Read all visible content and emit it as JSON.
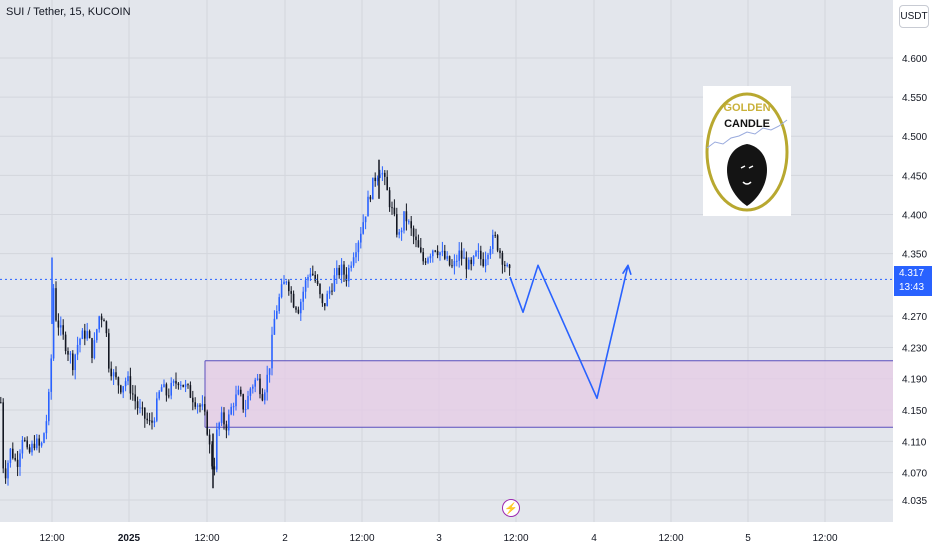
{
  "header": {
    "symbol_title": "SUI / Tether, 15, KUCOIN"
  },
  "price_axis": {
    "currency_label": "USDT",
    "last_price": "4.317",
    "countdown": "13:43"
  },
  "logo": {
    "line1": "GOLDEN",
    "line2": "CANDLE"
  },
  "colors": {
    "up_candle": "#2962ff",
    "down_candle": "#131722",
    "projection": "#2962ff",
    "zone_fill": "#e5cbe6",
    "zone_border": "#5b4fbd",
    "last_price_line": "#2962ff",
    "logo_ring": "#b8a830"
  },
  "chart_data": {
    "type": "candlestick",
    "symbol": "SUI / Tether",
    "interval": "15",
    "exchange": "KUCOIN",
    "ylim": [
      4.03,
      4.64
    ],
    "y_ticks": [
      4.035,
      4.07,
      4.11,
      4.15,
      4.19,
      4.23,
      4.27,
      4.317,
      4.35,
      4.4,
      4.45,
      4.5,
      4.55,
      4.6
    ],
    "y_tick_labels": [
      "4.035",
      "4.070",
      "4.110",
      "4.150",
      "4.190",
      "4.230",
      "4.270",
      "",
      "4.350",
      "4.400",
      "4.450",
      "4.500",
      "4.550",
      "4.600"
    ],
    "x_tick_labels": [
      "12:00",
      "2025",
      "12:00",
      "2",
      "12:00",
      "3",
      "12:00",
      "4",
      "12:00",
      "5",
      "12:00"
    ],
    "last_price": 4.317,
    "price_path": [
      [
        0,
        4.16
      ],
      [
        3,
        4.06
      ],
      [
        10,
        4.1
      ],
      [
        16,
        4.08
      ],
      [
        22,
        4.12
      ],
      [
        27,
        4.09
      ],
      [
        34,
        4.11
      ],
      [
        40,
        4.1
      ],
      [
        46,
        4.14
      ],
      [
        50,
        4.19
      ],
      [
        52,
        4.32
      ],
      [
        55,
        4.27
      ],
      [
        60,
        4.25
      ],
      [
        66,
        4.23
      ],
      [
        72,
        4.21
      ],
      [
        78,
        4.24
      ],
      [
        86,
        4.25
      ],
      [
        92,
        4.22
      ],
      [
        98,
        4.27
      ],
      [
        104,
        4.27
      ],
      [
        108,
        4.21
      ],
      [
        114,
        4.19
      ],
      [
        120,
        4.18
      ],
      [
        126,
        4.19
      ],
      [
        132,
        4.17
      ],
      [
        138,
        4.15
      ],
      [
        144,
        4.14
      ],
      [
        150,
        4.13
      ],
      [
        155,
        4.15
      ],
      [
        160,
        4.18
      ],
      [
        166,
        4.17
      ],
      [
        172,
        4.18
      ],
      [
        178,
        4.19
      ],
      [
        184,
        4.18
      ],
      [
        190,
        4.17
      ],
      [
        196,
        4.16
      ],
      [
        202,
        4.15
      ],
      [
        206,
        4.13
      ],
      [
        210,
        4.09
      ],
      [
        213,
        4.07
      ],
      [
        216,
        4.12
      ],
      [
        220,
        4.14
      ],
      [
        226,
        4.13
      ],
      [
        232,
        4.16
      ],
      [
        238,
        4.17
      ],
      [
        244,
        4.15
      ],
      [
        250,
        4.18
      ],
      [
        256,
        4.19
      ],
      [
        262,
        4.17
      ],
      [
        268,
        4.2
      ],
      [
        274,
        4.27
      ],
      [
        280,
        4.3
      ],
      [
        286,
        4.32
      ],
      [
        292,
        4.29
      ],
      [
        298,
        4.28
      ],
      [
        304,
        4.31
      ],
      [
        310,
        4.33
      ],
      [
        316,
        4.31
      ],
      [
        322,
        4.28
      ],
      [
        328,
        4.3
      ],
      [
        334,
        4.32
      ],
      [
        340,
        4.33
      ],
      [
        346,
        4.32
      ],
      [
        352,
        4.35
      ],
      [
        358,
        4.37
      ],
      [
        364,
        4.4
      ],
      [
        370,
        4.43
      ],
      [
        375,
        4.45
      ],
      [
        380,
        4.46
      ],
      [
        386,
        4.43
      ],
      [
        392,
        4.4
      ],
      [
        398,
        4.37
      ],
      [
        404,
        4.4
      ],
      [
        410,
        4.38
      ],
      [
        416,
        4.36
      ],
      [
        422,
        4.34
      ],
      [
        428,
        4.35
      ],
      [
        434,
        4.36
      ],
      [
        440,
        4.35
      ],
      [
        446,
        4.34
      ],
      [
        452,
        4.33
      ],
      [
        458,
        4.35
      ],
      [
        464,
        4.34
      ],
      [
        470,
        4.33
      ],
      [
        476,
        4.35
      ],
      [
        482,
        4.34
      ],
      [
        488,
        4.36
      ],
      [
        494,
        4.37
      ],
      [
        500,
        4.35
      ],
      [
        506,
        4.33
      ],
      [
        510,
        4.32
      ]
    ],
    "projection": [
      [
        510,
        4.32
      ],
      [
        523,
        4.275
      ],
      [
        538,
        4.335
      ],
      [
        597,
        4.165
      ],
      [
        628,
        4.335
      ],
      [
        623,
        4.325
      ],
      [
        628,
        4.335
      ],
      [
        631,
        4.323
      ]
    ],
    "zone": {
      "x_from": 205,
      "x_to": 893,
      "price_top": 4.213,
      "price_bottom": 4.128
    }
  }
}
